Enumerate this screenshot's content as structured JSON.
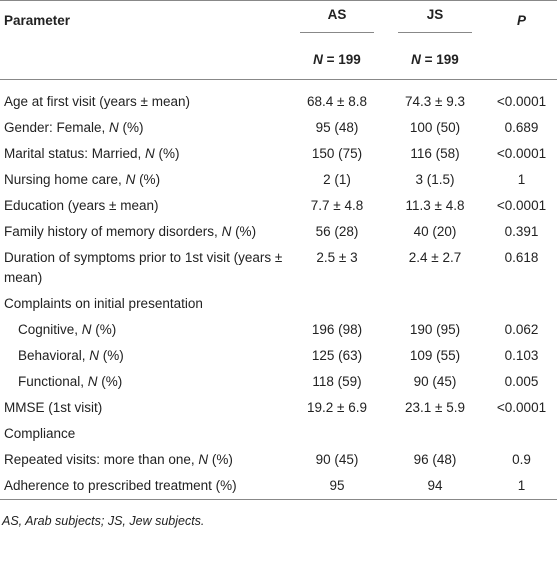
{
  "table": {
    "header": [
      "Parameter",
      "AS",
      "JS",
      "P"
    ],
    "subheader": [
      "N = 199",
      "N = 199"
    ],
    "rows": [
      [
        "Age at first visit (years ± mean)",
        "68.4 ± 8.8",
        "74.3 ± 9.3",
        "<0.0001"
      ],
      [
        "Gender: Female, N (%)",
        "95 (48)",
        "100 (50)",
        "0.689"
      ],
      [
        "Marital status: Married, N (%)",
        "150 (75)",
        "116 (58)",
        "<0.0001"
      ],
      [
        "Nursing home care, N (%)",
        "2 (1)",
        "3 (1.5)",
        "1"
      ],
      [
        "Education (years ± mean)",
        "7.7 ± 4.8",
        "11.3 ± 4.8",
        "<0.0001"
      ],
      [
        "Family history of memory disorders, N (%)",
        "56 (28)",
        "40 (20)",
        "0.391"
      ],
      [
        "Duration of symptoms prior to 1st visit (years ± mean)",
        "2.5 ± 3",
        "2.4 ± 2.7",
        "0.618"
      ],
      [
        "Complaints on initial presentation"
      ],
      [
        "Cognitive, N (%)",
        "196 (98)",
        "190 (95)",
        "0.062"
      ],
      [
        "Behavioral, N (%)",
        "125 (63)",
        "109 (55)",
        "0.103"
      ],
      [
        "Functional, N (%)",
        "118 (59)",
        "90 (45)",
        "0.005"
      ],
      [
        "MMSE (1st visit)",
        "19.2 ± 6.9",
        "23.1 ± 5.9",
        "<0.0001"
      ],
      [
        "Compliance"
      ],
      [
        "Repeated visits: more than one, N (%)",
        "90 (45)",
        "96 (48)",
        "0.9"
      ],
      [
        "Adherence to prescribed treatment (%)",
        "95",
        "94",
        "1"
      ]
    ],
    "footnote": "AS, Arab subjects; JS, Jew subjects."
  }
}
